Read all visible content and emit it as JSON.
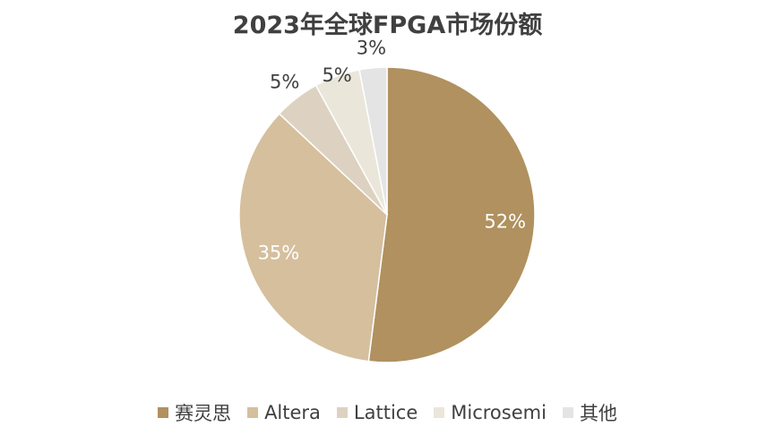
{
  "chart_data": {
    "type": "pie",
    "title": "2023年全球FPGA市场份额",
    "categories": [
      "赛灵思",
      "Altera",
      "Lattice",
      "Microsemi",
      "其他"
    ],
    "values": [
      52,
      35,
      5,
      5,
      3
    ],
    "data_labels": [
      "52%",
      "35%",
      "5%",
      "5%",
      "3%"
    ],
    "colors": [
      "#b0915f",
      "#d5bf9d",
      "#ddd2c1",
      "#ebe6da",
      "#e4e4e4"
    ],
    "label_colors": [
      "#ffffff",
      "#ffffff",
      "#404040",
      "#404040",
      "#404040"
    ],
    "start_angle_deg": 0,
    "direction": "clockwise",
    "legend_position": "bottom"
  }
}
